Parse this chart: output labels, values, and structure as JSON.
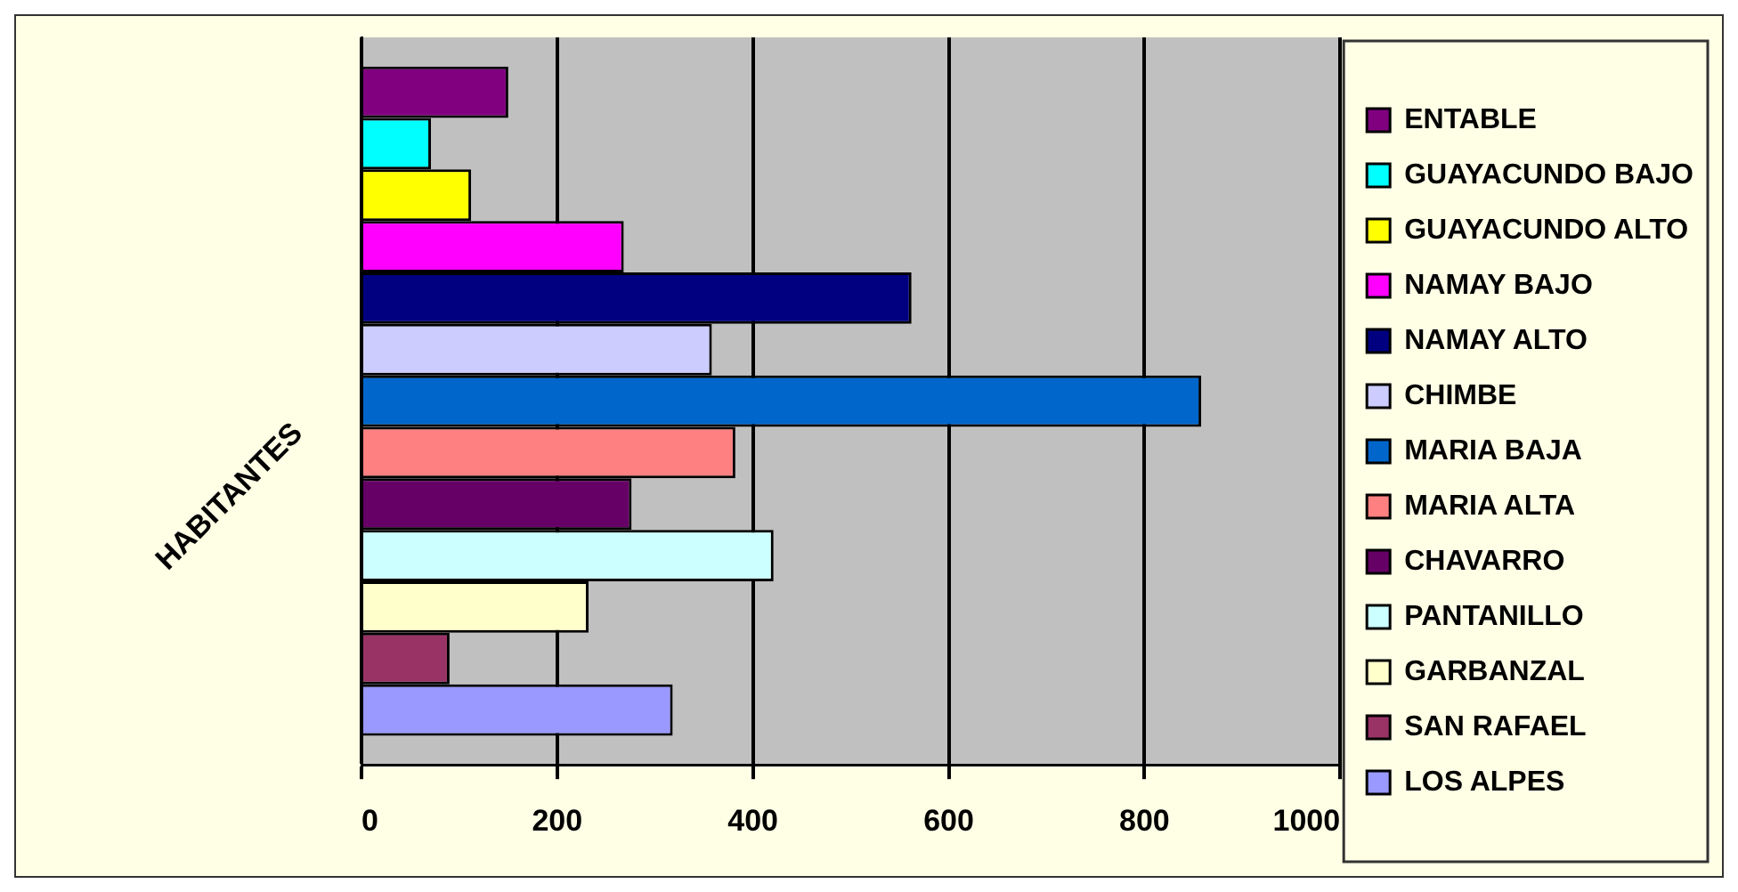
{
  "chart_data": {
    "type": "bar",
    "orientation": "horizontal",
    "ylabel": "HABITANTES",
    "categories": [
      null
    ],
    "series": [
      {
        "name": "ENTABLE",
        "color": "#800080",
        "values": [
          150
        ]
      },
      {
        "name": "GUAYACUNDO BAJO",
        "color": "#00ffff",
        "values": [
          71
        ]
      },
      {
        "name": "GUAYACUNDO ALTO",
        "color": "#ffff00",
        "values": [
          112
        ]
      },
      {
        "name": "NAMAY BAJO",
        "color": "#ff00ff",
        "values": [
          268
        ]
      },
      {
        "name": "NAMAY ALTO",
        "color": "#000080",
        "values": [
          562
        ]
      },
      {
        "name": "CHIMBE",
        "color": "#ccccff",
        "values": [
          358
        ]
      },
      {
        "name": "MARIA BAJA",
        "color": "#0066cc",
        "values": [
          858
        ]
      },
      {
        "name": "MARIA ALTA",
        "color": "#ff8080",
        "values": [
          382
        ]
      },
      {
        "name": "CHAVARRO",
        "color": "#660066",
        "values": [
          276
        ]
      },
      {
        "name": "PANTANILLO",
        "color": "#ccffff",
        "values": [
          421
        ]
      },
      {
        "name": "GARBANZAL",
        "color": "#ffffcc",
        "values": [
          232
        ]
      },
      {
        "name": "SAN RAFAEL",
        "color": "#993366",
        "values": [
          90
        ]
      },
      {
        "name": "LOS ALPES",
        "color": "#9999ff",
        "values": [
          318
        ]
      }
    ],
    "xlim": [
      0,
      1000
    ],
    "xticks": [
      0,
      200,
      400,
      600,
      800,
      1000
    ],
    "grid": "x",
    "legend": "right"
  }
}
